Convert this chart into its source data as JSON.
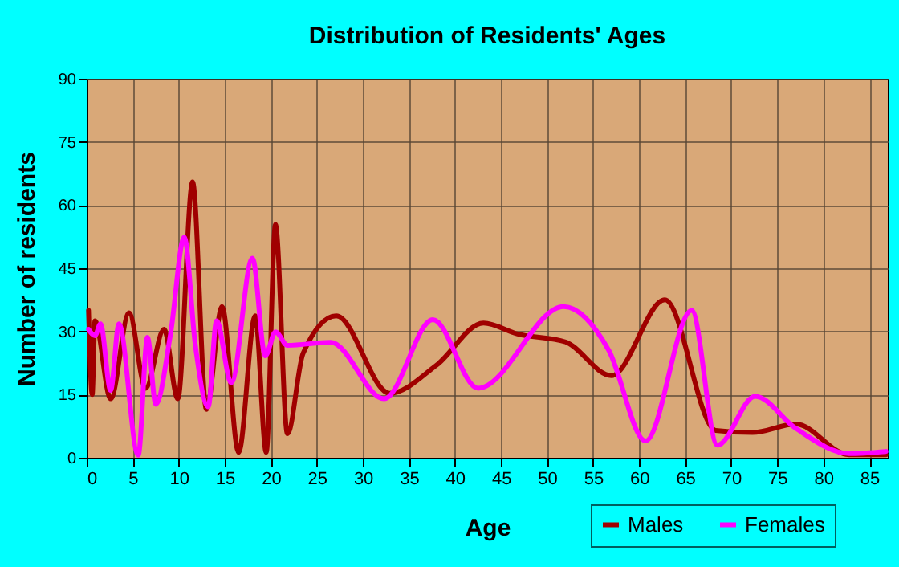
{
  "chart_data": {
    "type": "line",
    "title": "Distribution of Residents' Ages",
    "xlabel": "Age",
    "ylabel": "Number of residents",
    "xlim": [
      0,
      87
    ],
    "xticks": [
      0,
      5,
      10,
      15,
      20,
      25,
      30,
      35,
      40,
      45,
      50,
      55,
      60,
      65,
      70,
      75,
      80,
      85
    ],
    "ylim": [
      0,
      90
    ],
    "yticks": [
      0,
      15,
      30,
      45,
      60,
      75,
      90
    ],
    "grid": true,
    "legend": "bottom right",
    "marker": "none",
    "line_style": "solid",
    "series": [
      {
        "name": "Males",
        "color": "#a00000",
        "x": [
          0.2,
          0.6,
          0.9,
          2.6,
          4.6,
          6.4,
          8.4,
          9.9,
          11.5,
          13.0,
          14.7,
          16.5,
          18.3,
          19.5,
          20.5,
          21.8,
          23.5,
          27.1,
          32.9,
          38,
          43.1,
          46.8,
          52,
          57,
          62.8,
          68.3,
          72.3,
          77,
          82.8,
          86.8
        ],
        "values": [
          35,
          15,
          32.5,
          14,
          34.4,
          16.5,
          30.5,
          14,
          65.5,
          11.5,
          35.9,
          1.3,
          33.7,
          1.3,
          55.4,
          5.7,
          24.8,
          33.7,
          15.3,
          22,
          32,
          29.4,
          27.5,
          19.5,
          37.5,
          6.5,
          6,
          8,
          0.7,
          0.7
        ]
      },
      {
        "name": "Females",
        "color": "#ff00ff",
        "x": [
          0.2,
          0.9,
          1.5,
          2.6,
          3.5,
          5.6,
          6.6,
          7.5,
          9.1,
          10.6,
          11.8,
          13.2,
          14.1,
          15.7,
          18.0,
          19.4,
          20.5,
          21.8,
          26.5,
          32.3,
          37.6,
          42.5,
          51.8,
          56.7,
          60.7,
          65.7,
          68.5,
          72.6,
          77,
          82.8,
          86.8
        ],
        "values": [
          30.5,
          29,
          31.8,
          16,
          31.8,
          0.6,
          28.6,
          12.7,
          29.3,
          52.4,
          26.7,
          12.1,
          32.5,
          17.8,
          47.4,
          24.2,
          29.9,
          26.7,
          27.4,
          14,
          32.8,
          16.5,
          35.9,
          25.5,
          4,
          35,
          3,
          14.6,
          7,
          1,
          1.5
        ]
      }
    ]
  }
}
